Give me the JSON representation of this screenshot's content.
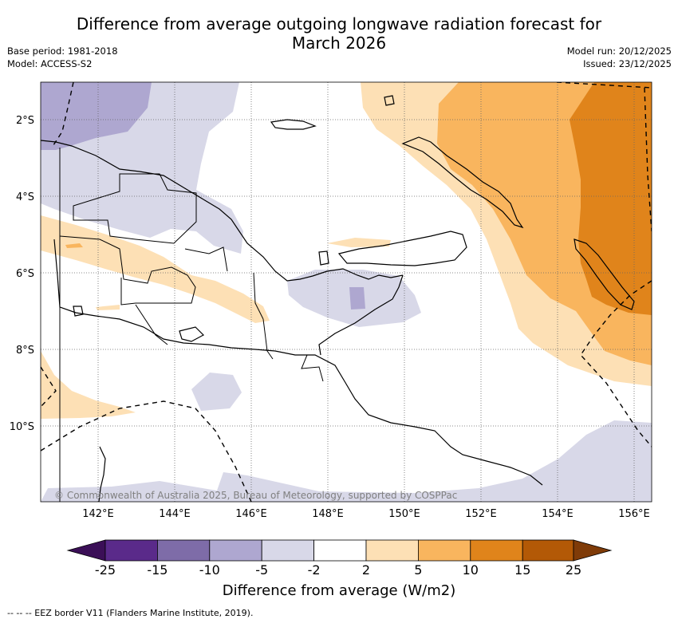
{
  "title": {
    "line1": "Difference from average outgoing longwave radiation forecast for",
    "line2": "March 2026"
  },
  "meta": {
    "base_period": "Base period: 1981-2018",
    "model": "Model: ACCESS-S2",
    "model_run": "Model run: 20/12/2025",
    "issued": "Issued: 23/12/2025"
  },
  "map": {
    "lat_labels": [
      "2°S",
      "4°S",
      "6°S",
      "8°S",
      "10°S"
    ],
    "lon_labels": [
      "142°E",
      "144°E",
      "146°E",
      "148°E",
      "150°E",
      "152°E",
      "154°E",
      "156°E"
    ],
    "copyright": "© Commonwealth of Australia 2025, Bureau of Meteorology, supported by COSPPac",
    "colors": {
      "neg25": "#3b0f57",
      "neg15": "#5a2a8a",
      "neg10": "#7e6ca8",
      "neg5": "#aea7d0",
      "neg2": "#d8d8e8",
      "neutral": "#ffffff",
      "pos2": "#fde0b5",
      "pos5": "#f9b55e",
      "pos10": "#e0841b",
      "pos15": "#b35906",
      "pos25": "#7f3b08"
    }
  },
  "colorbar": {
    "ticks": [
      "-25",
      "-15",
      "-10",
      "-5",
      "-2",
      "2",
      "5",
      "10",
      "15",
      "25"
    ],
    "label": "Difference from average (W/m2)"
  },
  "footer": {
    "legend": "--  --  -- EEZ border V11 (Flanders Marine Institute, 2019)."
  }
}
